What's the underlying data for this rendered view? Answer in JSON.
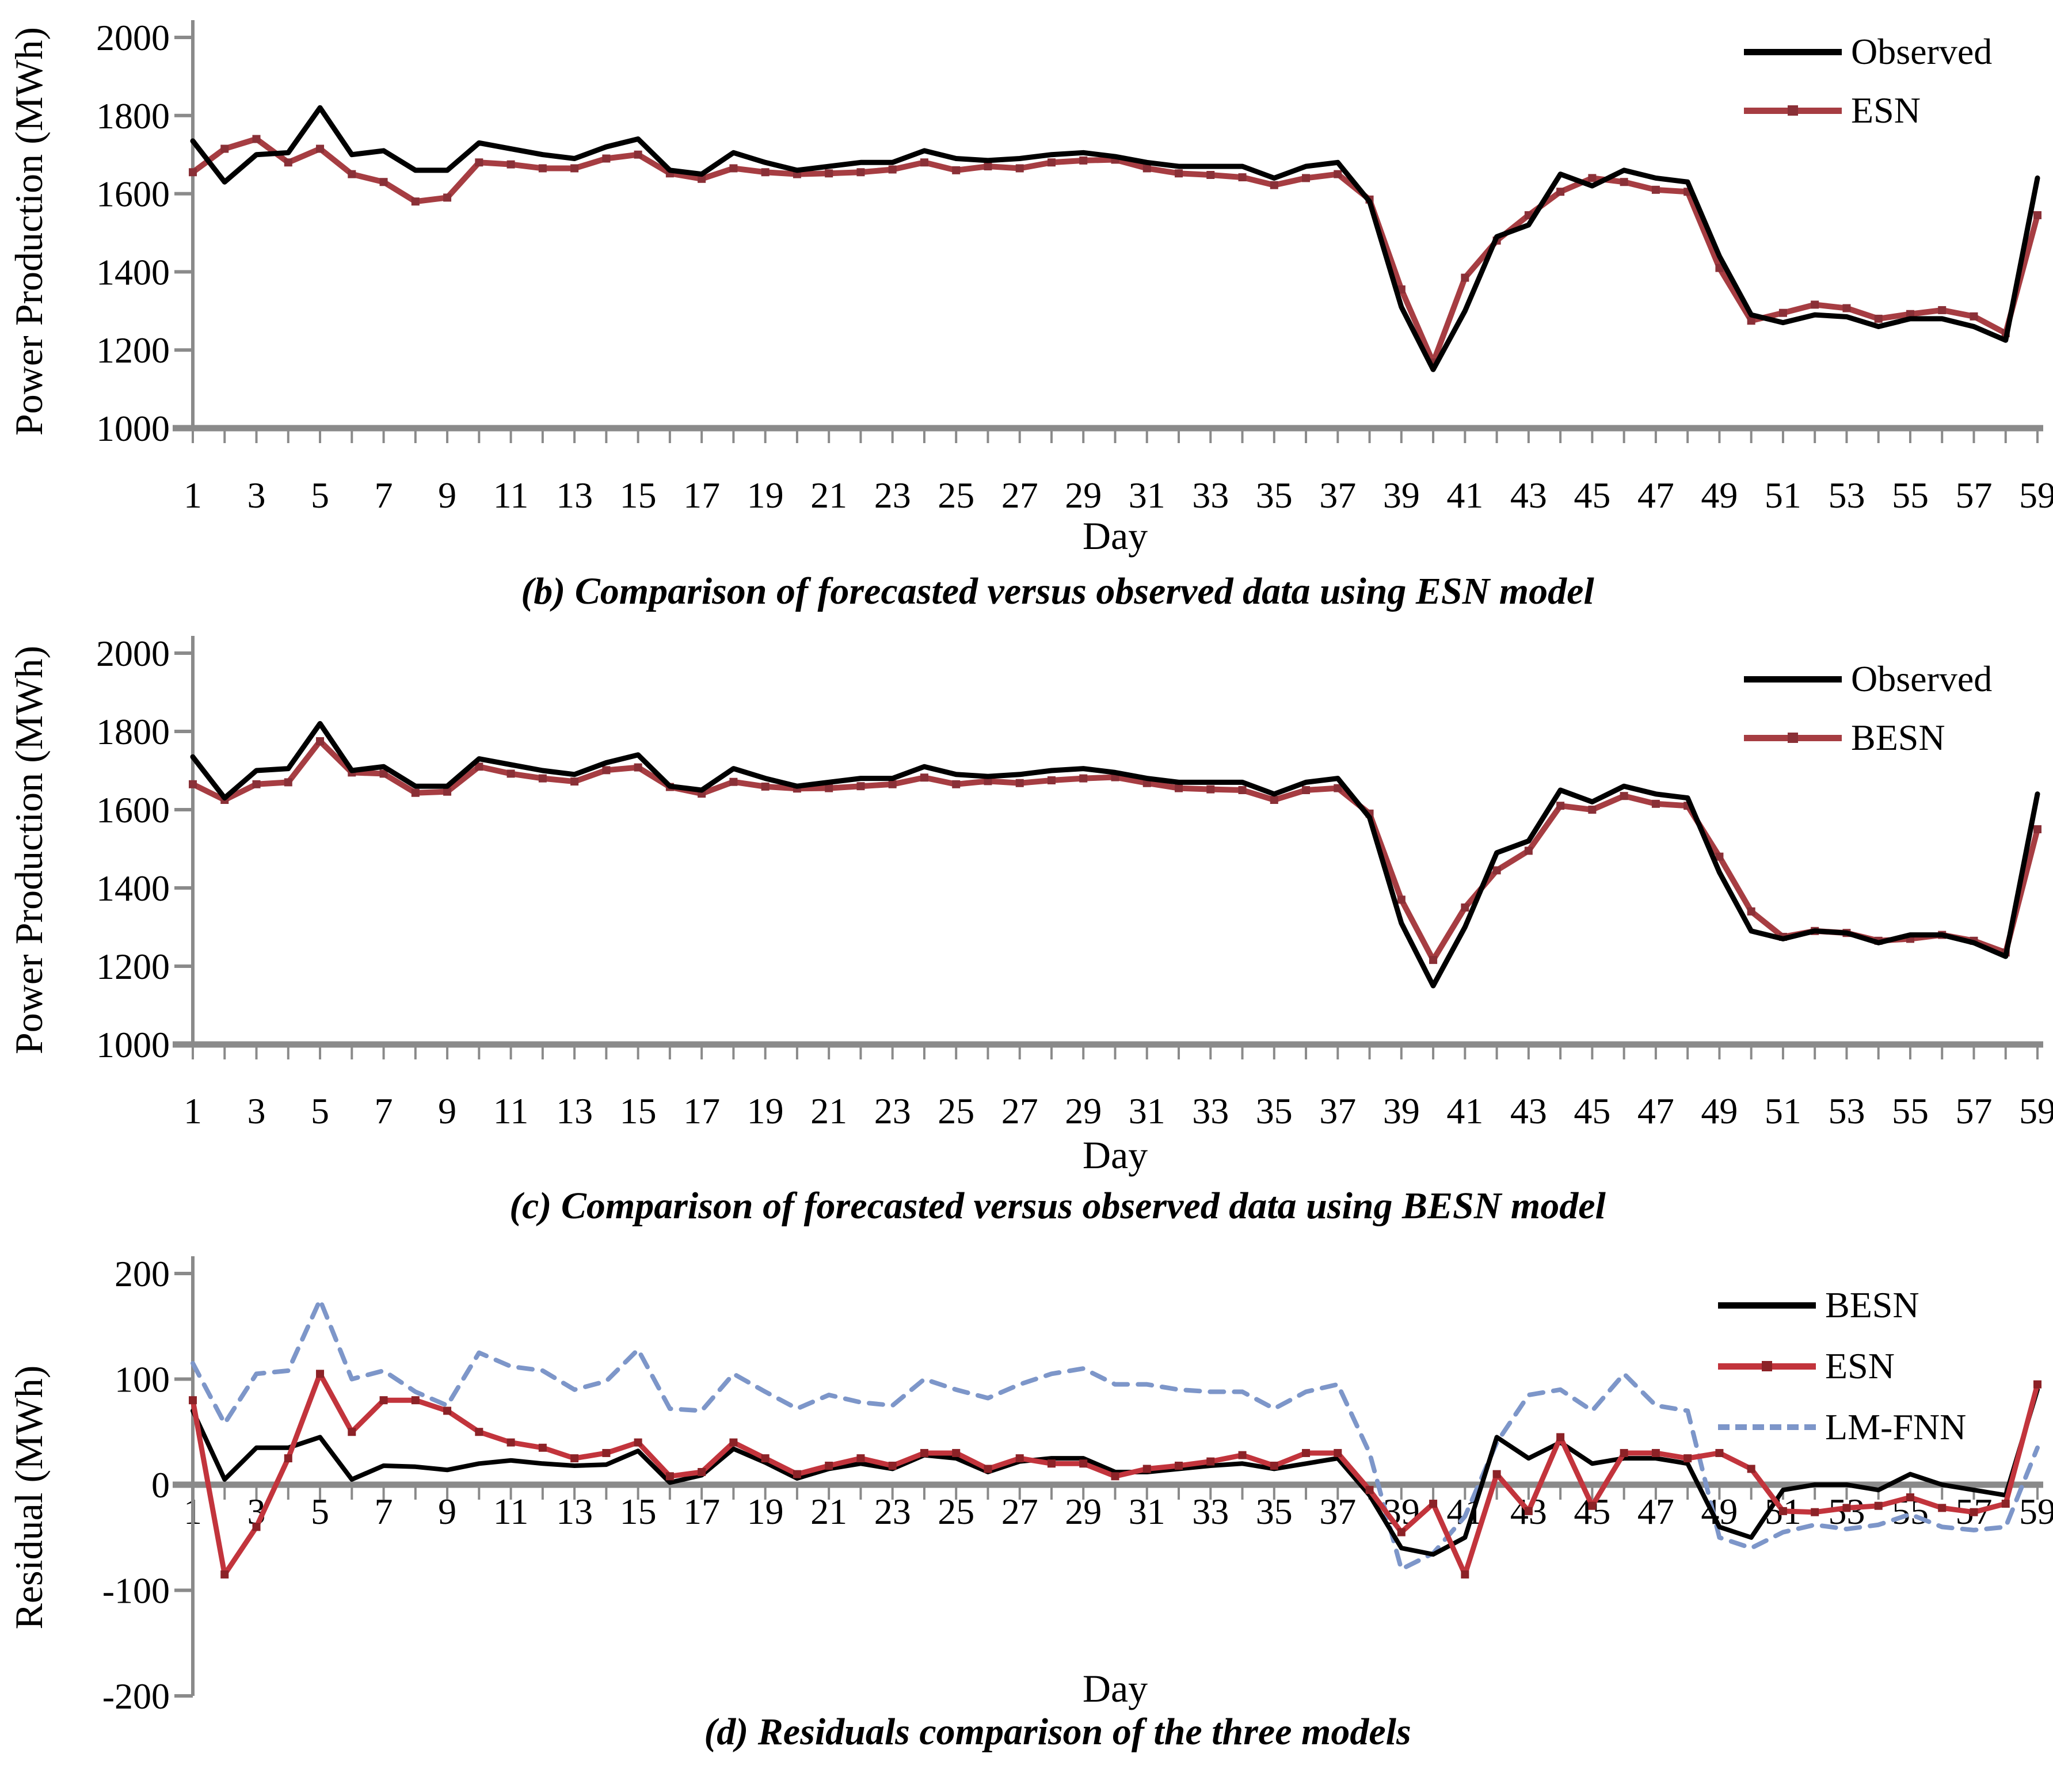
{
  "page_background": "#ffffff",
  "axis_color": "#8a8a8a",
  "text_color": "#000000",
  "days": [
    1,
    2,
    3,
    4,
    5,
    6,
    7,
    8,
    9,
    10,
    11,
    12,
    13,
    14,
    15,
    16,
    17,
    18,
    19,
    20,
    21,
    22,
    23,
    24,
    25,
    26,
    27,
    28,
    29,
    30,
    31,
    32,
    33,
    34,
    35,
    36,
    37,
    38,
    39,
    40,
    41,
    42,
    43,
    44,
    45,
    46,
    47,
    48,
    49,
    50,
    51,
    52,
    53,
    54,
    55,
    56,
    57,
    58,
    59
  ],
  "x_tick_labels_shown": [
    1,
    3,
    5,
    7,
    9,
    11,
    13,
    15,
    17,
    19,
    21,
    23,
    25,
    27,
    29,
    31,
    33,
    35,
    37,
    39,
    41,
    43,
    45,
    47,
    49,
    51,
    53,
    55,
    57,
    59
  ],
  "chart_data": [
    {
      "id": "b",
      "type": "line",
      "caption": "(b) Comparison of forecasted versus observed data using ESN model",
      "xlabel": "Day",
      "ylabel": "Power Production (MWh)",
      "ylim": [
        1000,
        2000
      ],
      "y_ticks": [
        2000,
        1800,
        1600,
        1400,
        1200,
        1000
      ],
      "grid": false,
      "legend_position": "top-right-inside",
      "series": [
        {
          "name": "Observed",
          "color": "#000000",
          "style": "solid",
          "marker": "none",
          "width": 9,
          "values": [
            1735,
            1630,
            1700,
            1705,
            1820,
            1700,
            1710,
            1660,
            1660,
            1730,
            1715,
            1700,
            1690,
            1720,
            1740,
            1660,
            1650,
            1705,
            1680,
            1660,
            1670,
            1680,
            1680,
            1710,
            1690,
            1685,
            1690,
            1700,
            1705,
            1695,
            1680,
            1670,
            1670,
            1670,
            1640,
            1670,
            1680,
            1580,
            1310,
            1150,
            1300,
            1490,
            1520,
            1650,
            1620,
            1660,
            1640,
            1630,
            1440,
            1290,
            1270,
            1290,
            1285,
            1260,
            1280,
            1280,
            1260,
            1225,
            1640
          ]
        },
        {
          "name": "ESN",
          "color": "#a63d42",
          "marker_color": "#8a3037",
          "style": "solid",
          "marker": "square",
          "width": 10,
          "values": [
            1655,
            1715,
            1740,
            1680,
            1715,
            1650,
            1630,
            1580,
            1590,
            1680,
            1675,
            1665,
            1665,
            1690,
            1700,
            1652,
            1638,
            1665,
            1655,
            1650,
            1652,
            1655,
            1662,
            1680,
            1660,
            1670,
            1665,
            1680,
            1685,
            1687,
            1665,
            1652,
            1648,
            1642,
            1622,
            1640,
            1650,
            1585,
            1355,
            1168,
            1385,
            1480,
            1545,
            1605,
            1640,
            1630,
            1610,
            1605,
            1410,
            1275,
            1295,
            1316,
            1307,
            1280,
            1292,
            1302,
            1286,
            1243,
            1545
          ]
        }
      ]
    },
    {
      "id": "c",
      "type": "line",
      "caption": "(c) Comparison of forecasted versus observed data using BESN model",
      "xlabel": "Day",
      "ylabel": "Power Production (MWh)",
      "ylim": [
        1000,
        2000
      ],
      "y_ticks": [
        2000,
        1800,
        1600,
        1400,
        1200,
        1000
      ],
      "grid": false,
      "legend_position": "top-right-inside",
      "series": [
        {
          "name": "Observed",
          "color": "#000000",
          "style": "solid",
          "marker": "none",
          "width": 9,
          "values": [
            1735,
            1630,
            1700,
            1705,
            1820,
            1700,
            1710,
            1660,
            1660,
            1730,
            1715,
            1700,
            1690,
            1720,
            1740,
            1660,
            1650,
            1705,
            1680,
            1660,
            1670,
            1680,
            1680,
            1710,
            1690,
            1685,
            1690,
            1700,
            1705,
            1695,
            1680,
            1670,
            1670,
            1670,
            1640,
            1670,
            1680,
            1580,
            1310,
            1150,
            1300,
            1490,
            1520,
            1650,
            1620,
            1660,
            1640,
            1630,
            1440,
            1290,
            1270,
            1290,
            1285,
            1260,
            1280,
            1280,
            1260,
            1225,
            1640
          ]
        },
        {
          "name": "BESN",
          "color": "#a63d42",
          "marker_color": "#8a3037",
          "style": "solid",
          "marker": "square",
          "width": 10,
          "values": [
            1665,
            1625,
            1665,
            1670,
            1775,
            1695,
            1692,
            1643,
            1646,
            1710,
            1692,
            1680,
            1672,
            1701,
            1708,
            1658,
            1641,
            1671,
            1659,
            1654,
            1655,
            1660,
            1665,
            1682,
            1665,
            1673,
            1668,
            1675,
            1680,
            1683,
            1668,
            1655,
            1652,
            1650,
            1625,
            1650,
            1655,
            1590,
            1370,
            1216,
            1350,
            1445,
            1495,
            1610,
            1600,
            1635,
            1615,
            1610,
            1480,
            1340,
            1275,
            1290,
            1285,
            1265,
            1270,
            1280,
            1265,
            1235,
            1550
          ]
        }
      ]
    },
    {
      "id": "d",
      "type": "line",
      "caption": "(d) Residuals comparison of the three models",
      "xlabel": "Day",
      "ylabel": "Residual (MWh)",
      "ylim": [
        -200,
        200
      ],
      "y_ticks": [
        200,
        100,
        0,
        -100,
        -200
      ],
      "grid": false,
      "legend_position": "top-right-inside",
      "x_axis_at_zero": true,
      "series": [
        {
          "name": "BESN",
          "color": "#000000",
          "style": "solid",
          "marker": "none",
          "width": 8,
          "values": [
            70,
            5,
            35,
            35,
            45,
            5,
            18,
            17,
            14,
            20,
            23,
            20,
            18,
            19,
            32,
            2,
            9,
            34,
            21,
            6,
            15,
            20,
            15,
            28,
            25,
            12,
            22,
            25,
            25,
            12,
            12,
            15,
            18,
            20,
            15,
            20,
            25,
            -10,
            -60,
            -66,
            -50,
            45,
            25,
            40,
            20,
            25,
            25,
            20,
            -40,
            -50,
            -5,
            0,
            0,
            -5,
            10,
            0,
            -5,
            -10,
            90
          ]
        },
        {
          "name": "ESN",
          "color": "#c2343c",
          "marker_color": "#8c2227",
          "style": "solid",
          "marker": "square",
          "width": 9,
          "values": [
            80,
            -85,
            -40,
            25,
            105,
            50,
            80,
            80,
            70,
            50,
            40,
            35,
            25,
            30,
            40,
            8,
            12,
            40,
            25,
            10,
            18,
            25,
            18,
            30,
            30,
            15,
            25,
            20,
            20,
            8,
            15,
            18,
            22,
            28,
            18,
            30,
            30,
            -5,
            -45,
            -18,
            -85,
            10,
            -25,
            45,
            -20,
            30,
            30,
            25,
            30,
            15,
            -25,
            -26,
            -22,
            -20,
            -12,
            -22,
            -26,
            -18,
            95
          ]
        },
        {
          "name": "LM-FNN",
          "color": "#7d96c9",
          "style": "dashed",
          "marker": "none",
          "width": 8,
          "values": [
            115,
            58,
            105,
            108,
            175,
            100,
            108,
            88,
            75,
            125,
            112,
            108,
            90,
            98,
            128,
            72,
            70,
            105,
            88,
            72,
            85,
            78,
            75,
            100,
            90,
            82,
            95,
            105,
            110,
            95,
            95,
            90,
            88,
            88,
            72,
            88,
            95,
            30,
            -80,
            -65,
            -30,
            40,
            85,
            90,
            70,
            105,
            75,
            70,
            -50,
            -60,
            -45,
            -38,
            -42,
            -38,
            -28,
            -40,
            -43,
            -40,
            35
          ]
        }
      ]
    }
  ]
}
